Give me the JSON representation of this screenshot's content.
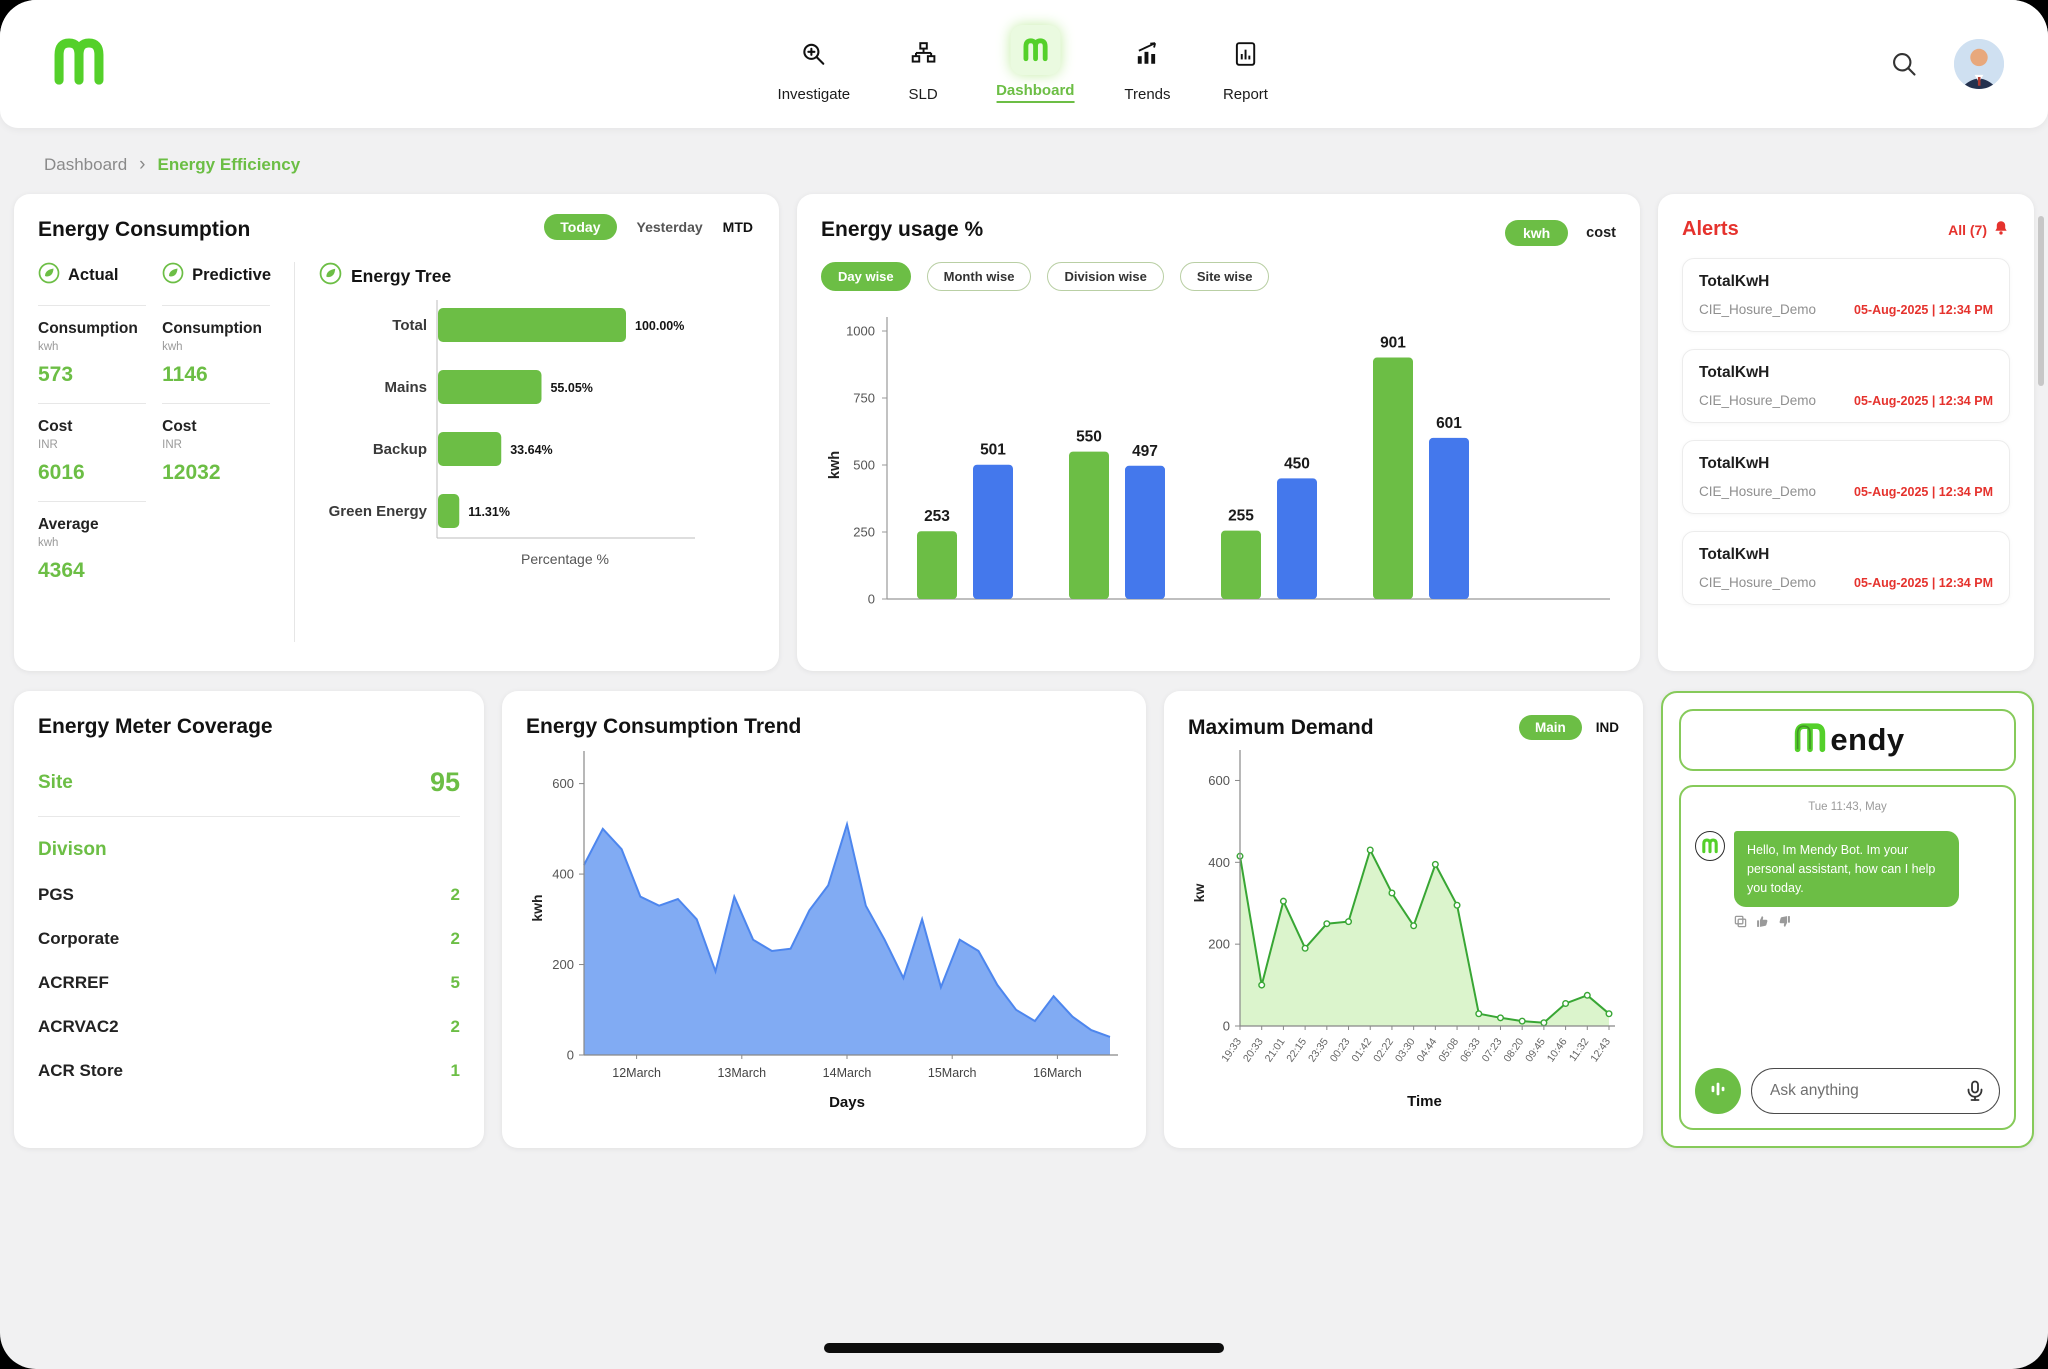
{
  "colors": {
    "green": "#6cbe45",
    "blue": "#4478ec",
    "red": "#e5322d",
    "trend_fill": "#7aa6f2",
    "trend_line": "#4d86ee",
    "demand_fill": "#d9f3c9",
    "demand_line": "#38a634"
  },
  "header": {
    "nav_items": [
      {
        "label": "Investigate"
      },
      {
        "label": "SLD"
      },
      {
        "label": "Dashboard"
      },
      {
        "label": "Trends"
      },
      {
        "label": "Report"
      }
    ]
  },
  "breadcrumb": {
    "parent": "Dashboard",
    "separator": "›",
    "current": "Energy Efficiency"
  },
  "energy_consumption": {
    "title": "Energy Consumption",
    "tabs": [
      "Today",
      "Yesterday",
      "MTD"
    ],
    "actual": {
      "label": "Actual",
      "consumption_label": "Consumption",
      "consumption_unit": "kwh",
      "consumption": "573",
      "cost_label": "Cost",
      "cost_unit": "INR",
      "cost": "6016",
      "average_label": "Average",
      "average_unit": "kwh",
      "average": "4364"
    },
    "predictive": {
      "label": "Predictive",
      "consumption_label": "Consumption",
      "consumption_unit": "kwh",
      "consumption": "1146",
      "cost_label": "Cost",
      "cost_unit": "INR",
      "cost": "12032"
    }
  },
  "energy_usage": {
    "unit_kwh": "kwh",
    "unit_cost": "cost",
    "filters": [
      "Day wise",
      "Month wise",
      "Division wise",
      "Site wise"
    ]
  },
  "alerts": {
    "title": "Alerts",
    "all_label": "All (7)",
    "items": [
      {
        "title": "TotalKwH",
        "source": "CIE_Hosure_Demo",
        "time": "05-Aug-2025 | 12:34 PM"
      },
      {
        "title": "TotalKwH",
        "source": "CIE_Hosure_Demo",
        "time": "05-Aug-2025 | 12:34 PM"
      },
      {
        "title": "TotalKwH",
        "source": "CIE_Hosure_Demo",
        "time": "05-Aug-2025 | 12:34 PM"
      },
      {
        "title": "TotalKwH",
        "source": "CIE_Hosure_Demo",
        "time": "05-Aug-2025 | 12:34 PM"
      }
    ]
  },
  "meter_coverage": {
    "title": "Energy Meter Coverage",
    "site_label": "Site",
    "site_value": "95",
    "division_label": "Divison",
    "divisions": [
      {
        "name": "PGS",
        "count": "2"
      },
      {
        "name": "Corporate",
        "count": "2"
      },
      {
        "name": "ACRREF",
        "count": "5"
      },
      {
        "name": "ACRVAC2",
        "count": "2"
      },
      {
        "name": "ACR Store",
        "count": "1"
      }
    ]
  },
  "max_demand": {
    "toggle_main": "Main",
    "toggle_ind": "IND"
  },
  "mendy": {
    "brand": "Mendy",
    "brand_suffix": "endy",
    "timestamp": "Tue 11:43, May",
    "message": "Hello, Im Mendy Bot. Im your personal assistant, how can I help you today.",
    "input_placeholder": "Ask anything"
  },
  "chart_data": [
    {
      "id": "energy_tree",
      "type": "bar",
      "orientation": "horizontal",
      "title": "Energy Tree",
      "categories": [
        "Total",
        "Mains",
        "Backup",
        "Green Energy"
      ],
      "values": [
        100.0,
        55.05,
        33.64,
        11.31
      ],
      "value_labels": [
        "100.00%",
        "55.05%",
        "33.64%",
        "11.31%"
      ],
      "xlabel": "Percentage %",
      "xlim": [
        0,
        100
      ],
      "bar_color": "#6cbe45"
    },
    {
      "id": "energy_usage",
      "type": "bar",
      "title": "Energy usage %",
      "ylabel": "kwh",
      "ylim": [
        0,
        1000
      ],
      "yticks": [
        0,
        250,
        500,
        750,
        1000
      ],
      "values": [
        253,
        501,
        550,
        497,
        255,
        450,
        901,
        601
      ],
      "colors": [
        "#6cbe45",
        "#4478ec",
        "#6cbe45",
        "#4478ec",
        "#6cbe45",
        "#4478ec",
        "#6cbe45",
        "#4478ec"
      ]
    },
    {
      "id": "consumption_trend",
      "type": "area",
      "title": "Energy Consumption Trend",
      "xlabel": "Days",
      "ylabel": "kwh",
      "ylim": [
        0,
        650
      ],
      "yticks": [
        0,
        200,
        400,
        600
      ],
      "xticks": [
        "12March",
        "13March",
        "14March",
        "15March",
        "16March"
      ],
      "values": [
        420,
        500,
        455,
        350,
        330,
        345,
        300,
        185,
        350,
        255,
        230,
        235,
        320,
        375,
        510,
        330,
        255,
        170,
        300,
        150,
        255,
        230,
        155,
        100,
        75,
        130,
        85,
        55,
        40
      ],
      "line_color": "#4d86ee",
      "fill_color": "#7aa6f2"
    },
    {
      "id": "max_demand",
      "type": "area",
      "title": "Maximum Demand",
      "xlabel": "Time",
      "ylabel": "kw",
      "ylim": [
        0,
        650
      ],
      "yticks": [
        0,
        200,
        400,
        600
      ],
      "xticks": [
        "19:33",
        "20:33",
        "21:01",
        "22:15",
        "23:35",
        "00:23",
        "01:42",
        "02:22",
        "03:30",
        "04:44",
        "05:08",
        "06:33",
        "07:23",
        "08:20",
        "09:45",
        "10:46",
        "11:32",
        "12:43"
      ],
      "values": [
        415,
        100,
        305,
        190,
        250,
        255,
        430,
        325,
        245,
        395,
        295,
        30,
        20,
        12,
        8,
        55,
        75,
        30
      ],
      "line_color": "#38a634",
      "fill_color": "#d9f3c9",
      "markers": true
    }
  ]
}
